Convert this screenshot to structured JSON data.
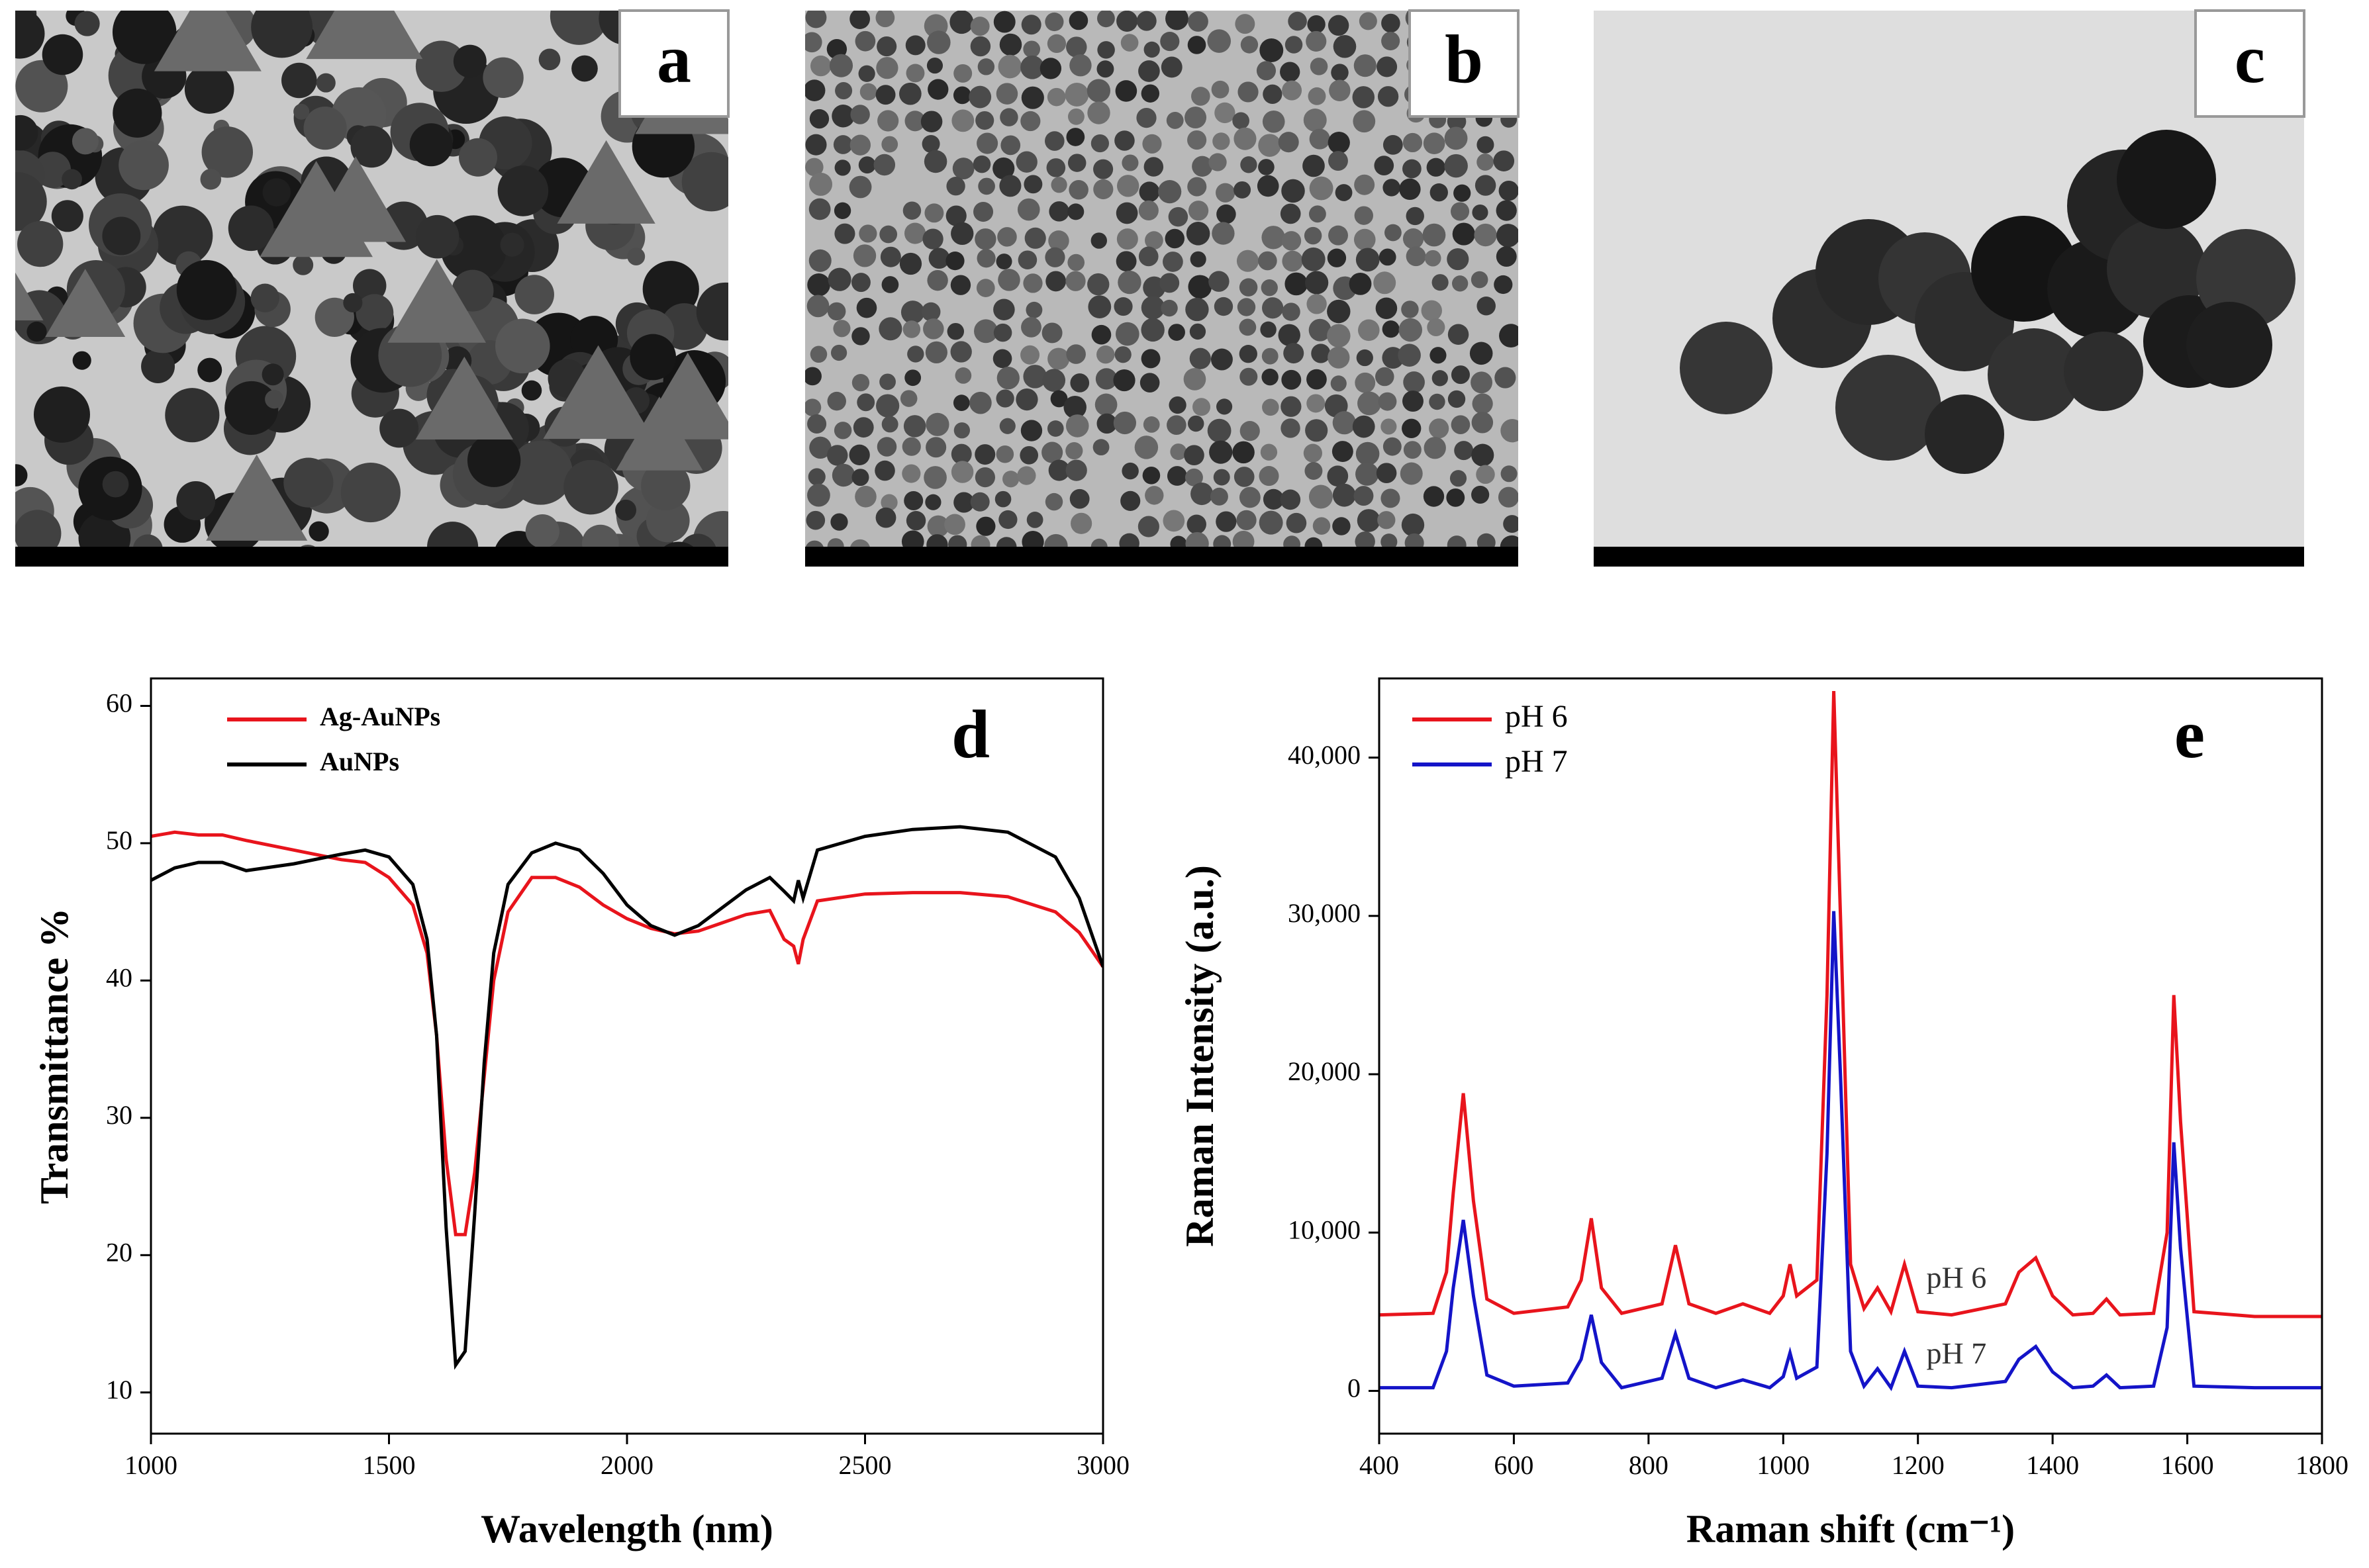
{
  "images": [
    {
      "label": "a"
    },
    {
      "label": "b"
    },
    {
      "label": "c"
    }
  ],
  "chart_data": [
    {
      "type": "line",
      "label": "d",
      "x_label": "Wavelength (nm)",
      "y_label": "Transmittance  %",
      "xlim": [
        1000,
        3000
      ],
      "ylim": [
        7,
        62
      ],
      "xticks": [
        1000,
        1500,
        2000,
        2500,
        3000
      ],
      "yticks": [
        10,
        20,
        30,
        40,
        50,
        60
      ],
      "legend": "upper left",
      "x": [
        1000,
        1050,
        1100,
        1150,
        1200,
        1300,
        1400,
        1450,
        1500,
        1550,
        1580,
        1600,
        1620,
        1640,
        1660,
        1680,
        1700,
        1720,
        1750,
        1800,
        1850,
        1900,
        1950,
        2000,
        2050,
        2100,
        2150,
        2200,
        2250,
        2300,
        2330,
        2350,
        2360,
        2370,
        2400,
        2500,
        2600,
        2700,
        2800,
        2900,
        2950,
        3000
      ],
      "series": [
        {
          "name": "Ag-AuNPs",
          "color": "#e8141c",
          "values": [
            50.5,
            50.8,
            50.6,
            50.6,
            50.2,
            49.5,
            48.8,
            48.6,
            47.5,
            45.5,
            42,
            36,
            27,
            21.5,
            21.5,
            26,
            33,
            40,
            45,
            47.5,
            47.5,
            46.8,
            45.5,
            44.5,
            43.8,
            43.4,
            43.6,
            44.2,
            44.8,
            45.1,
            43,
            42.5,
            41.2,
            43,
            45.8,
            46.3,
            46.4,
            46.4,
            46.1,
            45,
            43.5,
            41
          ]
        },
        {
          "name": "AuNPs",
          "color": "#000000",
          "values": [
            47.3,
            48.2,
            48.6,
            48.6,
            48,
            48.5,
            49.2,
            49.5,
            49,
            47,
            43,
            36,
            22,
            12,
            13,
            23,
            34,
            42,
            47,
            49.3,
            50,
            49.5,
            47.8,
            45.5,
            44,
            43.3,
            44,
            45.3,
            46.6,
            47.5,
            46.5,
            45.8,
            47.3,
            46,
            49.5,
            50.5,
            51,
            51.2,
            50.8,
            49,
            46,
            41
          ]
        }
      ]
    },
    {
      "type": "line",
      "label": "e",
      "x_label": "Raman shift (cm⁻¹)",
      "y_label": "Raman Intensity  (a.u.)",
      "xlim": [
        400,
        1800
      ],
      "ylim": [
        -2700,
        45000
      ],
      "xticks": [
        400,
        600,
        800,
        1000,
        1200,
        1400,
        1600,
        1800
      ],
      "yticks": [
        0,
        {
          "value": 10000,
          "label": "10,000"
        },
        {
          "value": 20000,
          "label": "20,000"
        },
        {
          "value": 30000,
          "label": "30,000"
        },
        {
          "value": 40000,
          "label": "40,000"
        }
      ],
      "legend": "upper left",
      "annotations": [
        "pH 6",
        "pH 7"
      ],
      "x": [
        400,
        480,
        500,
        510,
        525,
        540,
        560,
        600,
        680,
        700,
        715,
        730,
        760,
        820,
        840,
        860,
        900,
        940,
        980,
        1000,
        1010,
        1020,
        1050,
        1065,
        1075,
        1085,
        1100,
        1120,
        1140,
        1160,
        1180,
        1200,
        1250,
        1330,
        1350,
        1375,
        1400,
        1430,
        1460,
        1480,
        1500,
        1550,
        1570,
        1580,
        1590,
        1610,
        1700,
        1800
      ],
      "series": [
        {
          "name": "pH 6",
          "color": "#e8141c",
          "values": [
            4800,
            4900,
            7500,
            12500,
            18800,
            12000,
            5800,
            4900,
            5300,
            7000,
            10900,
            6500,
            4900,
            5500,
            9200,
            5500,
            4900,
            5500,
            4900,
            6000,
            8000,
            6000,
            7000,
            25000,
            44200,
            30000,
            8000,
            5200,
            6500,
            5000,
            8000,
            5000,
            4800,
            5500,
            7500,
            8400,
            6000,
            4800,
            4900,
            5800,
            4800,
            4900,
            10000,
            25000,
            17000,
            5000,
            4700,
            4700
          ]
        },
        {
          "name": "pH 7",
          "color": "#1414c8",
          "values": [
            200,
            200,
            2500,
            6500,
            10800,
            6000,
            1000,
            300,
            500,
            2000,
            4800,
            1800,
            200,
            800,
            3600,
            800,
            200,
            700,
            200,
            900,
            2400,
            800,
            1500,
            15000,
            30300,
            20000,
            2500,
            300,
            1400,
            200,
            2500,
            300,
            200,
            600,
            2000,
            2800,
            1200,
            200,
            300,
            1000,
            200,
            300,
            4000,
            15700,
            9000,
            300,
            200,
            200
          ]
        }
      ]
    }
  ]
}
